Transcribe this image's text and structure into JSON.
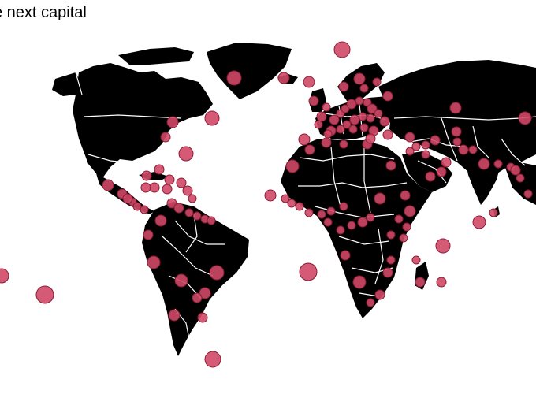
{
  "title": "e next capital",
  "colors": {
    "land": "#000000",
    "borders": "#ffffff",
    "marker_fill": "#d04866",
    "marker_stroke": "#8a1e36",
    "background": "#ffffff"
  },
  "markers": {
    "style": "circle"
  }
}
